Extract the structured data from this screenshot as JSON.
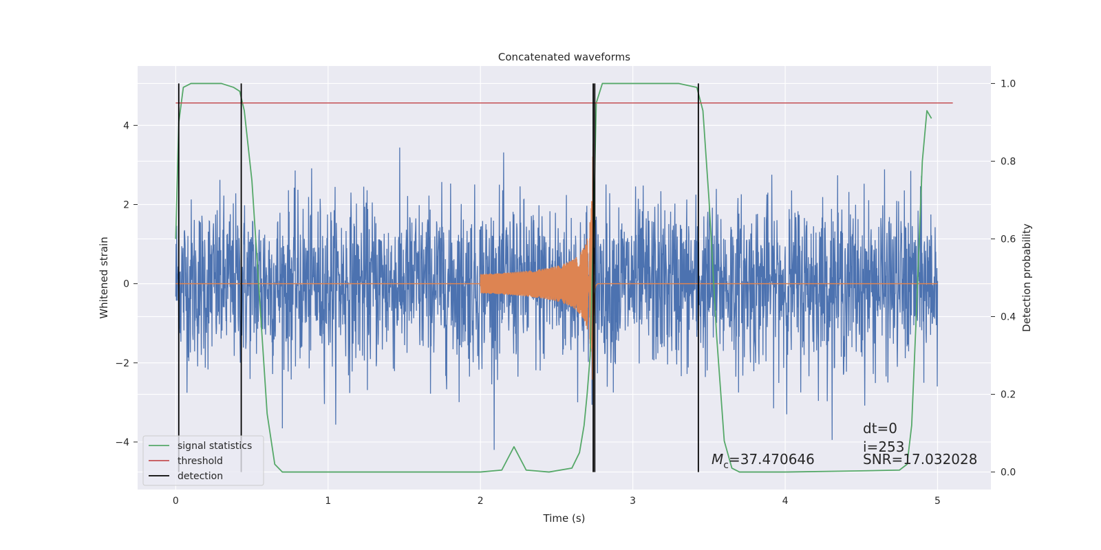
{
  "chart_data": {
    "type": "line",
    "title": "Concatenated waveforms",
    "xlabel": "Time (s)",
    "ylabel": "Whitened strain",
    "y2label": "Detection probability",
    "xlim": [
      -0.25,
      5.35
    ],
    "ylim": [
      -5.2,
      5.5
    ],
    "y2lim": [
      -0.045,
      1.045
    ],
    "xticks": [
      0,
      1,
      2,
      3,
      4,
      5
    ],
    "xtick_labels": [
      "0",
      "1",
      "2",
      "3",
      "4",
      "5"
    ],
    "yticks": [
      -4,
      -2,
      0,
      2,
      4
    ],
    "ytick_labels": [
      "−4",
      "−2",
      "0",
      "2",
      "4"
    ],
    "y2ticks": [
      0.0,
      0.2,
      0.4,
      0.6,
      0.8,
      1.0
    ],
    "y2tick_labels": [
      "0.0",
      "0.2",
      "0.4",
      "0.6",
      "0.8",
      "1.0"
    ],
    "grid": true,
    "legend_position": "lower-left",
    "series": [
      {
        "name": "",
        "role": "whitened strain noise",
        "axis": "left",
        "color": "#4c72b0",
        "t_range": [
          0,
          5
        ],
        "amplitude_range": [
          -4.2,
          3.6
        ]
      },
      {
        "name": "",
        "role": "injected waveform",
        "axis": "left",
        "color": "#dd8452",
        "t_range": [
          2.0,
          2.78
        ],
        "peak_amplitude": 3.6,
        "merger_time": 2.74
      },
      {
        "name": "signal statistics",
        "axis": "right",
        "color": "#55a868",
        "x": [
          0,
          0.02,
          0.05,
          0.1,
          0.2,
          0.3,
          0.38,
          0.42,
          0.45,
          0.5,
          0.55,
          0.6,
          0.65,
          0.7,
          1.0,
          1.5,
          2.0,
          2.14,
          2.22,
          2.3,
          2.45,
          2.6,
          2.65,
          2.68,
          2.7,
          2.72,
          2.74,
          2.76,
          2.8,
          3.0,
          3.3,
          3.42,
          3.46,
          3.5,
          3.55,
          3.6,
          3.65,
          3.7,
          4.0,
          4.5,
          4.75,
          4.8,
          4.83,
          4.86,
          4.9,
          4.93,
          4.96
        ],
        "y": [
          0.6,
          0.9,
          0.99,
          1.0,
          1.0,
          1.0,
          0.99,
          0.98,
          0.93,
          0.75,
          0.45,
          0.15,
          0.02,
          0.0,
          0.0,
          0.0,
          0.0,
          0.005,
          0.065,
          0.005,
          0.0,
          0.01,
          0.05,
          0.12,
          0.2,
          0.3,
          0.6,
          0.95,
          1.0,
          1.0,
          1.0,
          0.99,
          0.93,
          0.7,
          0.35,
          0.08,
          0.01,
          0.0,
          0.0,
          0.003,
          0.005,
          0.02,
          0.12,
          0.4,
          0.8,
          0.93,
          0.91
        ]
      },
      {
        "name": "threshold",
        "axis": "right",
        "color": "#c44e52",
        "x": [
          0,
          5.1
        ],
        "y": [
          0.95,
          0.95
        ]
      },
      {
        "name": "detection",
        "axis": "right",
        "color": "#000000",
        "x": [
          0.02,
          0.43,
          2.74,
          2.75,
          3.43
        ]
      }
    ],
    "annotations": [
      {
        "text": "dt=0",
        "x": 4.5,
        "y": -4.7
      },
      {
        "text": "i=253",
        "x": 4.5,
        "y": -5.25
      },
      {
        "text": "SNR=17.032028",
        "x": 4.5,
        "y": -5.65
      },
      {
        "text_prefix": "M",
        "text_subscript": "c",
        "text_suffix": "=37.470646",
        "x": 3.5,
        "y": -5.65
      }
    ],
    "colors": {
      "background": "#eaeaf2",
      "grid": "#ffffff"
    }
  }
}
